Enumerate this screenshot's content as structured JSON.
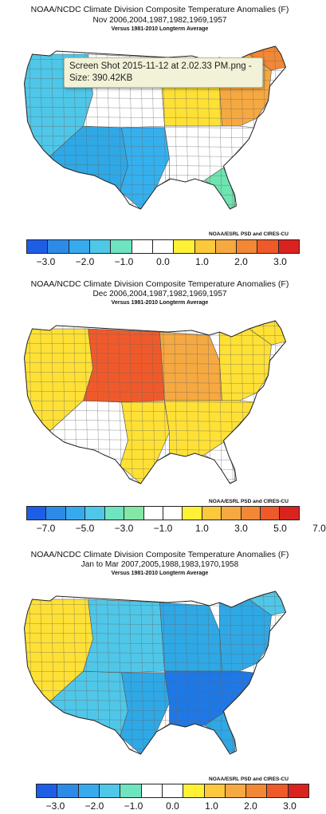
{
  "panels": [
    {
      "title1": "NOAA/NCDC Climate Division Composite Temperature Anomalies (F)",
      "title2": "Nov   2006,2004,1987,1982,1969,1957",
      "title3": "Versus 1981-2010 Longterm Average",
      "credit": "NOAA/ESRL PSD and CIRES-CU",
      "tick_labels": [
        "−3.0",
        "−2.0",
        "−1.0",
        "0.0",
        "1.0",
        "2.0",
        "3.0"
      ],
      "colors": {
        "west": "#4fc7e8",
        "southwest": "#2fa8e6",
        "texas": "#35b0ee",
        "plains": "#ffffff",
        "midwest": "#ffe135",
        "northeast": "#f6a940",
        "maine": "#f28735",
        "southeast": "#ffffff",
        "florida": "#6ee4b0",
        "southtip": "#3ac6c6"
      }
    },
    {
      "title1": "NOAA/NCDC Climate Division Composite Temperature Anomalies (F)",
      "title2": "Dec   2006,2004,1987,1982,1969,1957",
      "title3": "Versus 1981-2010 Longterm Average",
      "credit": "NOAA/ESRL PSD and CIRES-CU",
      "tick_labels": [
        "−7.0",
        "−5.0",
        "−3.0",
        "−1.0",
        "1.0",
        "3.0",
        "5.0",
        "7.0"
      ],
      "colors": {
        "west": "#ffe135",
        "southwest": "#ffffff",
        "texas": "#ffe135",
        "plains": "#f05a2a",
        "midwest": "#f6a940",
        "northeast": "#ffe135",
        "maine": "#ffe135",
        "southeast": "#ffe135",
        "florida": "#ffffff",
        "southtip": "#ffffff"
      }
    },
    {
      "title1": "NOAA/NCDC Climate Division Composite Temperature Anomalies (F)",
      "title2": "Jan to Mar  2007,2005,1988,1983,1970,1958",
      "title3": "Versus 1981-2010 Longterm Average",
      "credit": "NOAA/ESRL PSD and CIRES-CU",
      "tick_labels": [
        "−3.0",
        "−2.0",
        "−1.0",
        "0.0",
        "1.0",
        "2.0",
        "3.0"
      ],
      "colors": {
        "west": "#ffe135",
        "southwest": "#4fc7e8",
        "texas": "#2fa8e6",
        "plains": "#4fc7e8",
        "midwest": "#2fa8e6",
        "northeast": "#2fa8e6",
        "maine": "#4fc7e8",
        "southeast": "#1e78e6",
        "florida": "#2fa8e6",
        "southtip": "#2fa8e6"
      }
    }
  ],
  "palette_10": [
    "#1e5ee6",
    "#2d8be8",
    "#37aaee",
    "#4fc7e8",
    "#6ee4c0",
    "#ffffff",
    "#ffffff",
    "#fff135",
    "#fcc83c",
    "#f6a940",
    "#f28735",
    "#ee5a2a",
    "#d9231f"
  ],
  "palette_14": [
    "#1e5ee6",
    "#2d8be8",
    "#37aaee",
    "#4fc7e8",
    "#6ee4c0",
    "#83e8a5",
    "#ffffff",
    "#ffffff",
    "#fff135",
    "#fcc83c",
    "#f6a940",
    "#f28735",
    "#ee5a2a",
    "#d9231f"
  ],
  "tooltip": {
    "line1": "Screen Shot 2015-11-12 at 2.02.33 PM.png -",
    "line2": "Size: 390.42KB"
  }
}
